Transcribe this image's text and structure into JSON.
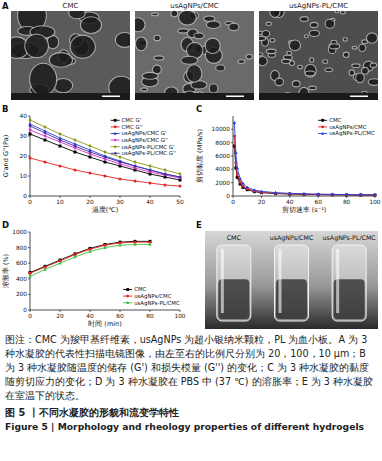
{
  "figure": {
    "panel_labels": [
      "A",
      "B",
      "C",
      "D",
      "E"
    ],
    "panel_a": {
      "images": [
        "CMC",
        "usAgNPs/CMC",
        "usAgNPs-PL/CMC"
      ]
    },
    "panel_e": {
      "samples": [
        "CMC",
        "usAgNPs/CMC",
        "usAgNPs-PL/CMC"
      ]
    },
    "caption": {
      "note": "图注：CMC 为羧甲基纤维素，usAgNPs 为超小银纳米颗粒，PL 为血小板。A 为 3 种水凝胶的代表性扫描电镜图像，由左至右的比例尺分别为 20，100，10 μm；B 为 3 种水凝胶随温度的储存 (G') 和损失模量 (G'') 的变化；C 为 3 种水凝胶的黏度随剪切应力的变化；D 为 3 种水凝胶在 PBS 中 (37 ℃) 的溶胀率；E 为 3 种水凝胶在室温下的状态。",
      "title": "图 5 丨不同水凝胶的形貌和流变学特性",
      "title_en": "Figure 5 | Morphology and rheology properties of different hydrogels"
    }
  },
  "chart_data": [
    {
      "type": "line",
      "x_label": "温度(℃)",
      "y_label": "G'and G''(Pa)",
      "x": [
        0,
        5,
        10,
        15,
        20,
        25,
        30,
        35,
        40,
        45,
        50
      ],
      "series": [
        {
          "name": "CMC G'",
          "color": "#000000",
          "marker": "square",
          "values": [
            31,
            28,
            25,
            22,
            19.5,
            17,
            15,
            13,
            11,
            9.5,
            8
          ]
        },
        {
          "name": "CMC G''",
          "color": "#e8231f",
          "marker": "circle",
          "values": [
            19,
            17,
            15,
            13,
            11.5,
            10,
            8.5,
            7.5,
            6.5,
            5.5,
            5
          ]
        },
        {
          "name": "usAgNPs/CMC G'",
          "color": "#2b3fd8",
          "marker": "triangle",
          "values": [
            36,
            32.5,
            29,
            26,
            23,
            20,
            17.5,
            15,
            13,
            11,
            9.5
          ]
        },
        {
          "name": "usAgNPs/CMC G''",
          "color": "#d62fc9",
          "marker": "triangle-down",
          "values": [
            33,
            30,
            27,
            24,
            21,
            18.5,
            16,
            14,
            12,
            10.5,
            9
          ]
        },
        {
          "name": "usAgNPs-PL/CMC G'",
          "color": "#8a9a1a",
          "marker": "diamond",
          "values": [
            38,
            34.5,
            31,
            28,
            25,
            22,
            19.5,
            17,
            15,
            13,
            11
          ]
        },
        {
          "name": "usAgNPs-PL/CMC G''",
          "color": "#3d2c9c",
          "marker": "triangle-left",
          "values": [
            35,
            31.5,
            28,
            25,
            22,
            19.5,
            17,
            15,
            13,
            11,
            9.5
          ]
        }
      ],
      "xlim": [
        0,
        50
      ],
      "xticks": [
        0,
        10,
        20,
        30,
        40,
        50
      ],
      "ylim": [
        0,
        40
      ],
      "yticks": [
        0,
        10,
        20,
        30,
        40
      ],
      "legend": "upper right"
    },
    {
      "type": "line",
      "x_label": "剪切速率 (s⁻¹)",
      "y_label": "剪切黏度 (MPa/s)",
      "x": [
        1,
        2,
        3,
        5,
        7,
        10,
        15,
        20,
        30,
        40,
        50,
        60,
        70,
        80,
        90,
        100
      ],
      "series": [
        {
          "name": "CMC",
          "color": "#000000",
          "marker": "square",
          "values": [
            7500,
            4200,
            2800,
            1800,
            1300,
            950,
            650,
            500,
            360,
            290,
            240,
            210,
            180,
            160,
            150,
            140
          ]
        },
        {
          "name": "usAgNPs/CMC",
          "color": "#e8231f",
          "marker": "circle",
          "values": [
            9000,
            5000,
            3300,
            2100,
            1500,
            1100,
            750,
            580,
            420,
            340,
            280,
            240,
            210,
            190,
            170,
            160
          ]
        },
        {
          "name": "usAgNPs-PL/CMC",
          "color": "#2b3fd8",
          "marker": "triangle",
          "values": [
            11000,
            6500,
            4200,
            2600,
            1900,
            1300,
            900,
            700,
            500,
            400,
            330,
            280,
            250,
            220,
            200,
            180
          ]
        }
      ],
      "xlim": [
        0,
        100
      ],
      "xticks": [
        0,
        20,
        40,
        60,
        80,
        100
      ],
      "ylim": [
        0,
        12000
      ],
      "yticks": [
        0,
        2000,
        4000,
        6000,
        8000,
        10000
      ],
      "legend": "upper right"
    },
    {
      "type": "line",
      "x_label": "时间 (min)",
      "y_label": "溶胀率 (%)",
      "x": [
        0,
        10,
        20,
        30,
        40,
        50,
        60,
        70,
        80
      ],
      "series": [
        {
          "name": "CMC",
          "color": "#000000",
          "marker": "square",
          "values": [
            480,
            560,
            640,
            720,
            790,
            840,
            870,
            880,
            880
          ]
        },
        {
          "name": "usAgNPs/CMC",
          "color": "#e8231f",
          "marker": "circle",
          "values": [
            470,
            550,
            630,
            710,
            780,
            830,
            860,
            870,
            870
          ]
        },
        {
          "name": "usAgNPs-PL/CMC",
          "color": "#3fbf3f",
          "marker": "triangle",
          "values": [
            430,
            520,
            600,
            680,
            750,
            800,
            830,
            840,
            840
          ]
        }
      ],
      "xlim": [
        0,
        100
      ],
      "xticks": [
        0,
        20,
        40,
        60,
        80,
        100
      ],
      "ylim": [
        0,
        1000
      ],
      "yticks": [
        0,
        200,
        400,
        600,
        800,
        1000
      ],
      "legend": "lower right"
    }
  ]
}
